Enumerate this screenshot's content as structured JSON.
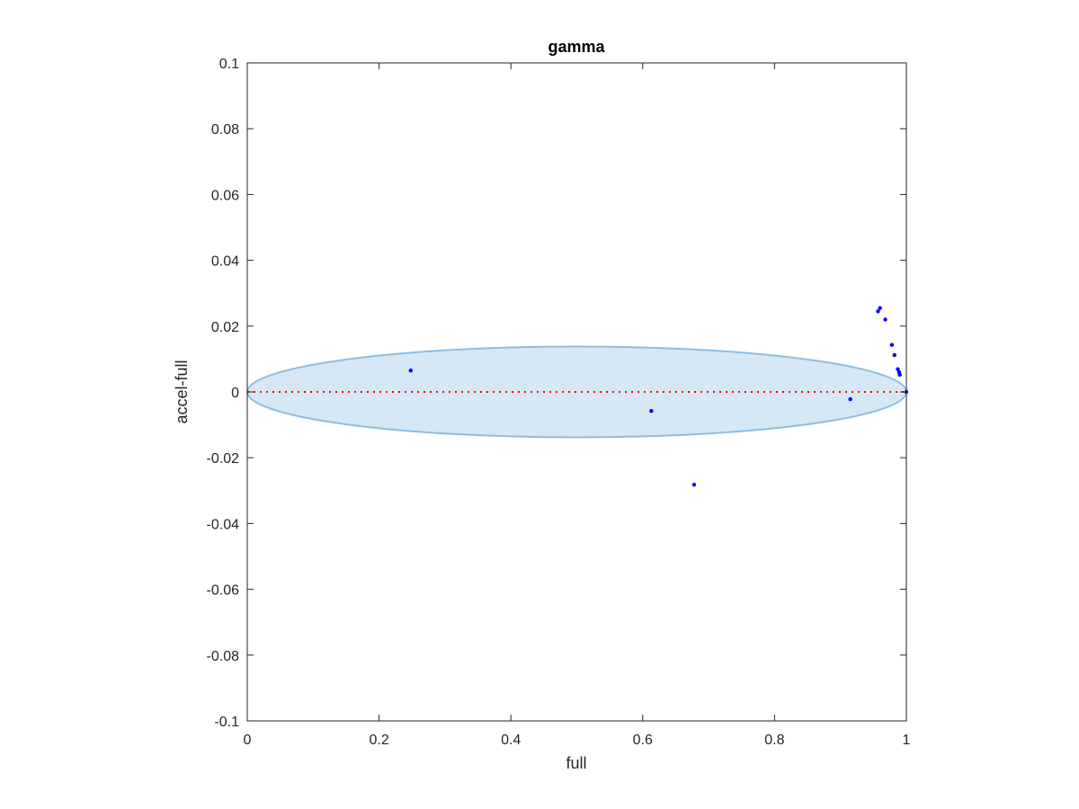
{
  "chart_data": {
    "type": "scatter",
    "title": "gamma",
    "xlabel": "full",
    "ylabel": "accel-full",
    "xlim": [
      0,
      1
    ],
    "ylim": [
      -0.1,
      0.1
    ],
    "xticks": [
      0,
      0.2,
      0.4,
      0.6,
      0.8,
      1
    ],
    "xtick_labels": [
      "0",
      "0.2",
      "0.4",
      "0.6",
      "0.8",
      "1"
    ],
    "yticks": [
      -0.1,
      -0.08,
      -0.06,
      -0.04,
      -0.02,
      0,
      0.02,
      0.04,
      0.06,
      0.08,
      0.1
    ],
    "ytick_labels": [
      "-0.1",
      "-0.08",
      "-0.06",
      "-0.04",
      "-0.02",
      "0",
      "0.02",
      "0.04",
      "0.06",
      "0.08",
      "0.1"
    ],
    "grid": false,
    "points": [
      {
        "x": 0.248,
        "y": 0.0065
      },
      {
        "x": 0.613,
        "y": -0.0058
      },
      {
        "x": 0.678,
        "y": -0.0282
      },
      {
        "x": 0.915,
        "y": -0.0022
      },
      {
        "x": 0.957,
        "y": 0.0245
      },
      {
        "x": 0.96,
        "y": 0.0255
      },
      {
        "x": 0.968,
        "y": 0.022
      },
      {
        "x": 0.978,
        "y": 0.0143
      },
      {
        "x": 0.982,
        "y": 0.0112
      },
      {
        "x": 0.987,
        "y": 0.0069
      },
      {
        "x": 0.989,
        "y": 0.006
      },
      {
        "x": 0.99,
        "y": 0.0052
      },
      {
        "x": 1.0,
        "y": 0.0
      }
    ],
    "reference_line": {
      "y": 0,
      "style": "dotted",
      "color": "#ff0000"
    },
    "ellipse": {
      "cx": 0.5,
      "cy": 0,
      "rx": 0.5,
      "ry": 0.0138,
      "fill": "#d6e8f5",
      "stroke": "#8fbde0"
    },
    "point_color": "#0000ff"
  }
}
